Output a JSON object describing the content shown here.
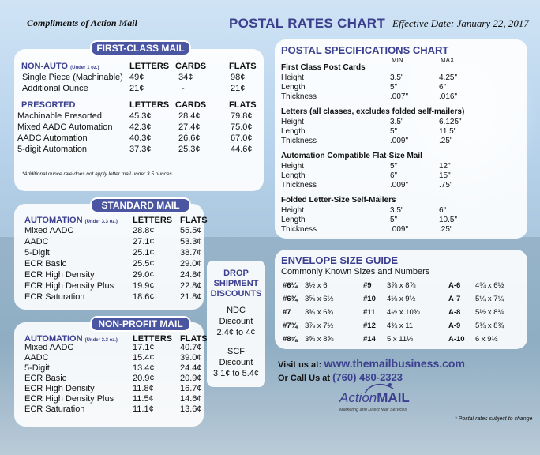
{
  "header": {
    "compliments": "Compliments of Action Mail",
    "title": "POSTAL RATES CHART",
    "effective": "Effective Date: January 22, 2017"
  },
  "first_class": {
    "title": "FIRST-CLASS MAIL",
    "nonauto_label": "NON-AUTO",
    "nonauto_note": "(Under 1 oz.)",
    "col_letters": "LETTERS",
    "col_cards": "CARDS",
    "col_flats": "FLATS",
    "nonauto_rows": [
      {
        "name": "Single Piece (Machinable)",
        "letters": "49¢",
        "cards": "34¢",
        "flats": "98¢"
      },
      {
        "name": "Additional  Ounce",
        "letters": "21¢",
        "cards": "-",
        "flats": "21¢"
      }
    ],
    "presorted_label": "PRESORTED",
    "presorted_rows": [
      {
        "name": "Machinable Presorted",
        "letters": "45.3¢",
        "cards": "28.4¢",
        "flats": "79.8¢"
      },
      {
        "name": "Mixed AADC Automation",
        "letters": "42.3¢",
        "cards": "27.4¢",
        "flats": "75.0¢"
      },
      {
        "name": "AADC Automation",
        "letters": "40.3¢",
        "cards": "26.6¢",
        "flats": "67.0¢"
      },
      {
        "name": "5-digit Automation",
        "letters": "37.3¢",
        "cards": "25.3¢",
        "flats": "44.6¢"
      }
    ],
    "note": "*Additional ounce rate does not apply letter mail under 3.5 ounces"
  },
  "standard": {
    "title": "STANDARD MAIL",
    "auto_label": "AUTOMATION",
    "auto_note": "(Under 3.3 oz.)",
    "col_letters": "LETTERS",
    "col_flats": "FLATS",
    "rows": [
      {
        "name": "Mixed AADC",
        "letters": "28.8¢",
        "flats": "55.5¢"
      },
      {
        "name": "AADC",
        "letters": "27.1¢",
        "flats": "53.3¢"
      },
      {
        "name": "5-Digit",
        "letters": "25.1¢",
        "flats": "38.7¢"
      },
      {
        "name": "ECR Basic",
        "letters": "25.5¢",
        "flats": "29.0¢"
      },
      {
        "name": "ECR High Density",
        "letters": "29.0¢",
        "flats": "24.8¢"
      },
      {
        "name": "ECR High Density Plus",
        "letters": "19.9¢",
        "flats": "22.8¢"
      },
      {
        "name": "ECR Saturation",
        "letters": "18.6¢",
        "flats": "21.8¢"
      }
    ]
  },
  "nonprofit": {
    "title": "NON-PROFIT MAIL",
    "auto_label": "AUTOMATION",
    "auto_note": "(Under 3.3 oz.)",
    "col_letters": "LETTERS",
    "col_flats": "FLATS",
    "rows": [
      {
        "name": "Mixed AADC",
        "letters": "17.1¢",
        "flats": "40.7¢"
      },
      {
        "name": "AADC",
        "letters": "15.4¢",
        "flats": "39.0¢"
      },
      {
        "name": "5-Digit",
        "letters": "13.4¢",
        "flats": "24.4¢"
      },
      {
        "name": "ECR Basic",
        "letters": "20.9¢",
        "flats": "20.9¢"
      },
      {
        "name": "ECR High Density",
        "letters": "11.8¢",
        "flats": "16.7¢"
      },
      {
        "name": "ECR High Density Plus",
        "letters": "11.5¢",
        "flats": "14.6¢"
      },
      {
        "name": "ECR Saturation",
        "letters": "11.1¢",
        "flats": "13.6¢"
      }
    ]
  },
  "drop": {
    "title1": "DROP",
    "title2": "SHIPMENT",
    "title3": "DISCOUNTS",
    "ndc1": "NDC",
    "ndc2": "Discount",
    "ndc3": "2.4¢ to 4¢",
    "scf1": "SCF",
    "scf2": "Discount",
    "scf3": "3.1¢ to 5.4¢"
  },
  "specs": {
    "title": "POSTAL SPECIFICATIONS CHART",
    "min": "MIN",
    "max": "MAX",
    "groups": [
      {
        "heading": "First Class Post Cards",
        "rows": [
          {
            "k": "Height",
            "min": "3.5\"",
            "max": "4.25\""
          },
          {
            "k": "Length",
            "min": "5\"",
            "max": "6\""
          },
          {
            "k": "Thickness",
            "min": ".007\"",
            "max": ".016\""
          }
        ]
      },
      {
        "heading": "Letters (all classes, excludes folded self-mailers)",
        "rows": [
          {
            "k": "Height",
            "min": "3.5\"",
            "max": "6.125\""
          },
          {
            "k": "Length",
            "min": "5\"",
            "max": "11.5\""
          },
          {
            "k": "Thickness",
            "min": ".009\"",
            "max": ".25\""
          }
        ]
      },
      {
        "heading": "Automation Compatible Flat-Size Mail",
        "rows": [
          {
            "k": "Height",
            "min": "5\"",
            "max": "12\""
          },
          {
            "k": "Length",
            "min": "6\"",
            "max": "15\""
          },
          {
            "k": "Thickness",
            "min": ".009\"",
            "max": ".75\""
          }
        ]
      },
      {
        "heading": "Folded Letter-Size Self-Mailers",
        "rows": [
          {
            "k": "Height",
            "min": "3.5\"",
            "max": "6\""
          },
          {
            "k": "Length",
            "min": "5\"",
            "max": "10.5\""
          },
          {
            "k": "Thickness",
            "min": ".009\"",
            "max": ".25\""
          }
        ]
      }
    ]
  },
  "envelope": {
    "title": "ENVELOPE SIZE GUIDE",
    "subtitle": "Commonly Known Sizes and Numbers",
    "rows": [
      [
        "#6¼",
        "3½ x 6",
        "#9",
        "3⅞ x 8⅞",
        "A-6",
        "4¾ x 6½"
      ],
      [
        "#6¾",
        "3⅝ x 6½",
        "#10",
        "4⅛ x 9½",
        "A-7",
        "5¼ x 7¼"
      ],
      [
        "#7",
        "3¾ x 6¾",
        "#11",
        "4½ x 10⅜",
        "A-8",
        "5½ x 8⅛"
      ],
      [
        "#7¾",
        "3⅞ x 7½",
        "#12",
        "4¾ x 11",
        "A-9",
        "5¾ x 8¾"
      ],
      [
        "#8⅝",
        "3⅝ x 8⅝",
        "#14",
        "5 x 11½",
        "A-10",
        "6 x 9½"
      ]
    ]
  },
  "contact": {
    "visit": "Visit us at:",
    "url": "www.themailbusiness.com",
    "call": "Or Call Us at",
    "phone": "(760) 480-2323",
    "logo_a": "Action",
    "logo_b": "MAIL",
    "tagline": "Marketing and Direct Mail Services",
    "disclaimer": "* Postal rates subject to change"
  }
}
